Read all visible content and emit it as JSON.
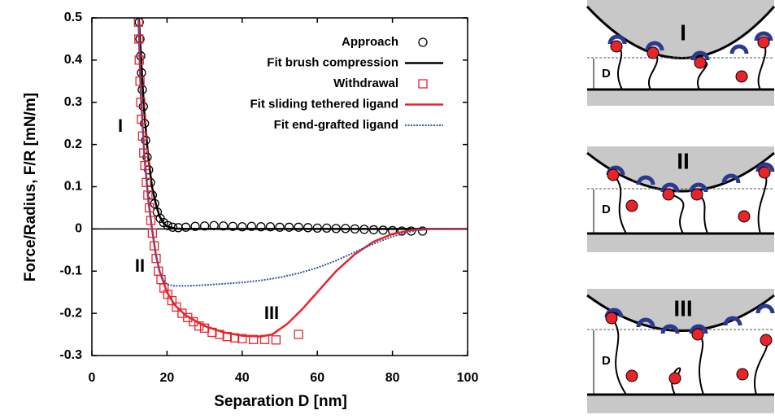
{
  "chart_data": {
    "type": "scatter-line",
    "x_label": "Separation D [nm]",
    "y_label": "Force/Radius, F/R [mN/m]",
    "xlim": [
      0,
      100
    ],
    "ylim": [
      -0.3,
      0.5
    ],
    "xticks": [
      0,
      20,
      40,
      60,
      80,
      100
    ],
    "yticks": [
      -0.3,
      -0.2,
      -0.1,
      0,
      0.1,
      0.2,
      0.3,
      0.4,
      0.5
    ],
    "legend": "upper right",
    "annotations": [
      "I",
      "II",
      "III"
    ],
    "series": [
      {
        "name": "Approach",
        "color": "#000000",
        "marker": "circle",
        "x": [
          12.6,
          12.8,
          13.0,
          13.2,
          13.4,
          13.7,
          14.0,
          14.3,
          14.7,
          15.1,
          15.6,
          16.1,
          16.7,
          17.4,
          18.2,
          19.1,
          20.2,
          21.5,
          23,
          25,
          27.5,
          30,
          32.5,
          35,
          37.5,
          40,
          42.5,
          45,
          47.5,
          50,
          52.5,
          55,
          57.5,
          60,
          62.5,
          65,
          67.5,
          70,
          72.5,
          75,
          77.5,
          80,
          82.5,
          85,
          88
        ],
        "values": [
          0.49,
          0.45,
          0.41,
          0.37,
          0.33,
          0.29,
          0.25,
          0.21,
          0.17,
          0.14,
          0.11,
          0.08,
          0.06,
          0.04,
          0.025,
          0.015,
          0.008,
          0.004,
          0.003,
          0.004,
          0.006,
          0.007,
          0.008,
          0.007,
          0.006,
          0.005,
          0.006,
          0.005,
          0.005,
          0.004,
          0.004,
          0.004,
          0.003,
          0.002,
          0.002,
          0.001,
          0.001,
          0,
          -0.001,
          -0.002,
          -0.003,
          -0.004,
          -0.005,
          -0.005,
          -0.005
        ]
      },
      {
        "name": "Fit brush compression",
        "color": "#000000",
        "marker": null,
        "dash": "solid",
        "x": [
          12.5,
          13,
          13.5,
          14,
          15,
          16,
          17,
          18,
          19,
          20,
          22,
          25,
          100
        ],
        "values": [
          0.5,
          0.42,
          0.34,
          0.27,
          0.17,
          0.1,
          0.06,
          0.03,
          0.015,
          0.006,
          0.001,
          0,
          0
        ]
      },
      {
        "name": "Withdrawal",
        "color": "#e8232a",
        "marker": "square",
        "x": [
          12.4,
          12.5,
          12.6,
          12.8,
          13,
          13.2,
          13.5,
          13.8,
          14.1,
          14.5,
          14.9,
          15.3,
          15.7,
          16.1,
          16.6,
          17.1,
          17.7,
          18.4,
          19.2,
          20.2,
          21.3,
          22.5,
          24,
          25.5,
          27,
          28.5,
          30,
          32,
          34,
          36,
          38,
          40,
          43,
          46,
          49,
          55
        ],
        "values": [
          0.49,
          0.45,
          0.4,
          0.35,
          0.3,
          0.26,
          0.22,
          0.18,
          0.15,
          0.11,
          0.08,
          0.05,
          0.02,
          -0.01,
          -0.04,
          -0.07,
          -0.1,
          -0.12,
          -0.14,
          -0.155,
          -0.17,
          -0.185,
          -0.2,
          -0.21,
          -0.22,
          -0.23,
          -0.235,
          -0.245,
          -0.25,
          -0.255,
          -0.258,
          -0.26,
          -0.262,
          -0.262,
          -0.263,
          -0.25
        ]
      },
      {
        "name": "Fit sliding tethered ligand",
        "color": "#e8232a",
        "marker": null,
        "dash": "solid",
        "x": [
          12.4,
          13,
          14,
          15,
          16,
          17,
          18,
          20,
          22,
          25,
          30,
          35,
          40,
          45,
          48,
          52,
          56,
          60,
          65,
          70,
          75,
          80,
          85,
          90,
          100
        ],
        "values": [
          0.5,
          0.32,
          0.17,
          0.07,
          0,
          -0.06,
          -0.1,
          -0.15,
          -0.18,
          -0.205,
          -0.23,
          -0.245,
          -0.253,
          -0.255,
          -0.25,
          -0.225,
          -0.19,
          -0.15,
          -0.1,
          -0.06,
          -0.03,
          -0.012,
          -0.003,
          0,
          0
        ]
      },
      {
        "name": "Fit end-grafted ligand",
        "color": "#3a53a4",
        "marker": null,
        "dash": "dotted",
        "x": [
          12.4,
          13,
          14,
          15,
          16,
          17,
          18,
          19,
          20,
          22,
          25,
          30,
          35,
          40,
          45,
          50,
          55,
          60,
          65,
          70,
          75,
          80,
          85,
          90,
          100
        ],
        "values": [
          0.5,
          0.32,
          0.17,
          0.07,
          0,
          -0.06,
          -0.1,
          -0.12,
          -0.132,
          -0.135,
          -0.135,
          -0.133,
          -0.13,
          -0.127,
          -0.122,
          -0.115,
          -0.105,
          -0.092,
          -0.075,
          -0.055,
          -0.035,
          -0.018,
          -0.006,
          0,
          0
        ]
      }
    ]
  },
  "diagrams": [
    {
      "label": "I",
      "distance": "D"
    },
    {
      "label": "II",
      "distance": "D"
    },
    {
      "label": "III",
      "distance": "D"
    }
  ]
}
